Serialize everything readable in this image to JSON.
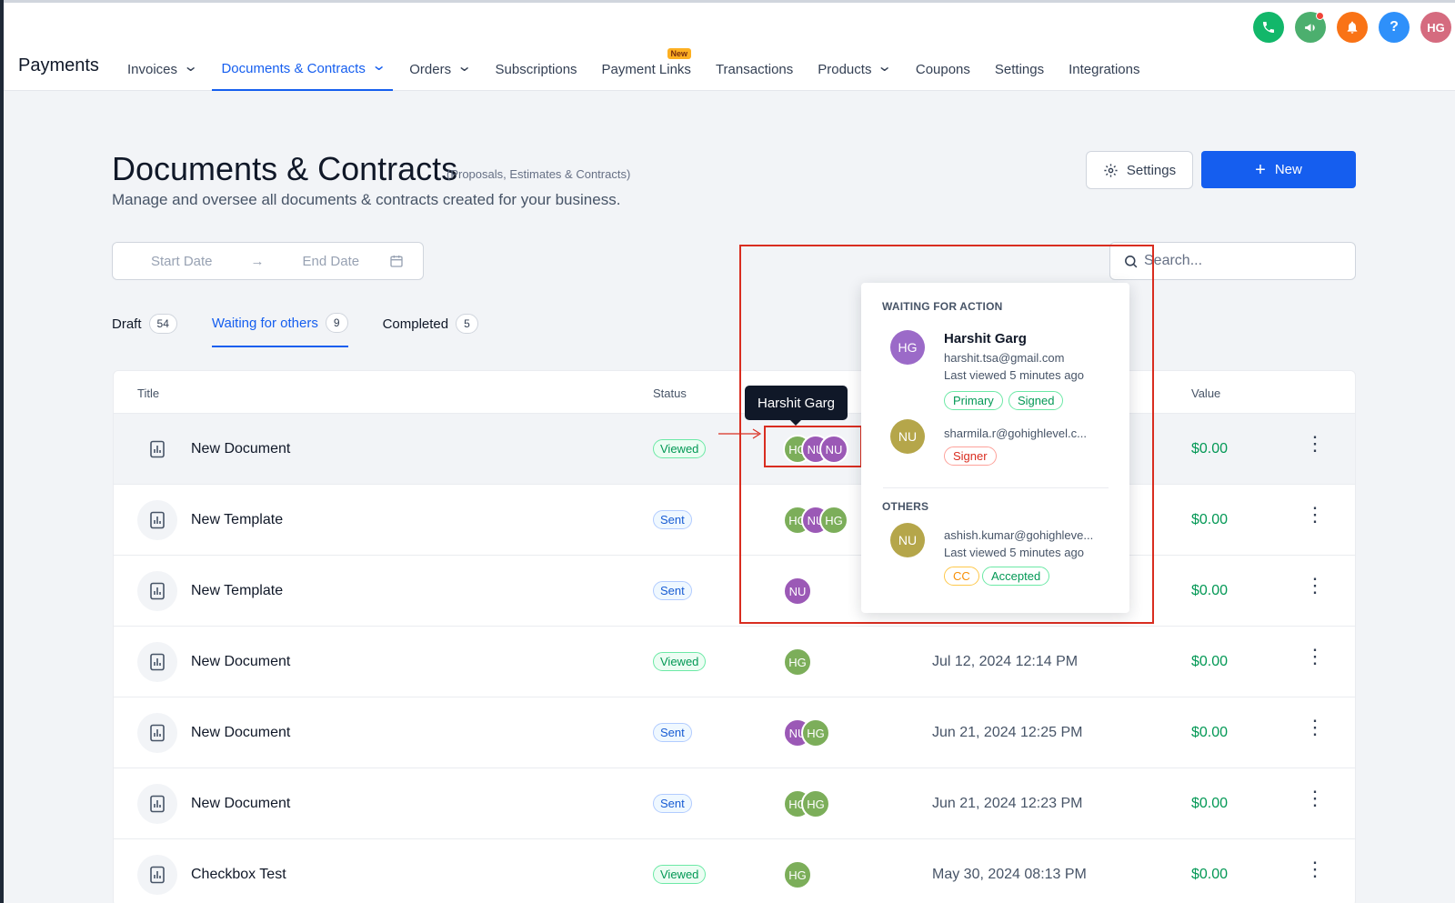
{
  "app": {
    "brand": "Payments",
    "nav": [
      {
        "label": "Invoices",
        "dropdown": true,
        "active": false
      },
      {
        "label": "Documents & Contracts",
        "dropdown": true,
        "active": true
      },
      {
        "label": "Orders",
        "dropdown": true,
        "active": false
      },
      {
        "label": "Subscriptions",
        "dropdown": false,
        "active": false
      },
      {
        "label": "Payment Links",
        "dropdown": false,
        "active": false,
        "tag": "New"
      },
      {
        "label": "Transactions",
        "dropdown": false,
        "active": false
      },
      {
        "label": "Products",
        "dropdown": true,
        "active": false
      },
      {
        "label": "Coupons",
        "dropdown": false,
        "active": false
      },
      {
        "label": "Settings",
        "dropdown": false,
        "active": false
      },
      {
        "label": "Integrations",
        "dropdown": false,
        "active": false
      }
    ],
    "top_icons": [
      {
        "name": "phone-icon",
        "color": "#12b76a"
      },
      {
        "name": "megaphone-icon",
        "color": "#4caf6e"
      },
      {
        "name": "bell-icon",
        "color": "#f97316"
      },
      {
        "name": "help-icon",
        "color": "#2e90fa",
        "glyph": "?"
      },
      {
        "name": "user-avatar",
        "color": "#d56b7f",
        "glyph": "HG"
      }
    ]
  },
  "header": {
    "title": "Documents & Contracts",
    "subtitle": "(Proposals, Estimates & Contracts)",
    "description": "Manage and oversee all documents & contracts created for your business.",
    "settings_label": "Settings",
    "new_label": "New"
  },
  "filters": {
    "start_date_placeholder": "Start Date",
    "end_date_placeholder": "End Date",
    "search_placeholder": "Search..."
  },
  "tabs": [
    {
      "label": "Draft",
      "count": "54",
      "active": false
    },
    {
      "label": "Waiting for others",
      "count": "9",
      "active": true
    },
    {
      "label": "Completed",
      "count": "5",
      "active": false
    }
  ],
  "table": {
    "columns": {
      "title": "Title",
      "status": "Status",
      "value": "Value"
    },
    "rows": [
      {
        "title": "New Document",
        "status": "Viewed",
        "avatars": [
          "HG",
          "NU",
          "NU"
        ],
        "updated": "",
        "value": "$0.00"
      },
      {
        "title": "New Template",
        "status": "Sent",
        "avatars": [
          "HG",
          "NU",
          "HG"
        ],
        "updated": "",
        "value": "$0.00"
      },
      {
        "title": "New Template",
        "status": "Sent",
        "avatars": [
          "NU"
        ],
        "updated": "",
        "value": "$0.00"
      },
      {
        "title": "New Document",
        "status": "Viewed",
        "avatars": [
          "HG"
        ],
        "updated": "Jul 12, 2024 12:14 PM",
        "value": "$0.00"
      },
      {
        "title": "New Document",
        "status": "Sent",
        "avatars": [
          "NU",
          "HG"
        ],
        "updated": "Jun 21, 2024 12:25 PM",
        "value": "$0.00"
      },
      {
        "title": "New Document",
        "status": "Sent",
        "avatars": [
          "HG",
          "HG"
        ],
        "updated": "Jun 21, 2024 12:23 PM",
        "value": "$0.00"
      },
      {
        "title": "Checkbox Test",
        "status": "Viewed",
        "avatars": [
          "HG"
        ],
        "updated": "May 30, 2024 08:13 PM",
        "value": "$0.00"
      }
    ]
  },
  "tooltip": {
    "text": "Harshit Garg"
  },
  "popover": {
    "waiting_heading": "WAITING FOR ACTION",
    "others_heading": "OTHERS",
    "p1": {
      "initials": "HG",
      "name": "Harshit Garg",
      "email": "harshit.tsa@gmail.com",
      "viewed": "Last viewed 5 minutes ago",
      "tag1": "Primary",
      "tag2": "Signed"
    },
    "p2": {
      "initials": "NU",
      "email": "sharmila.r@gohighlevel.c...",
      "tag1": "Signer"
    },
    "p3": {
      "initials": "NU",
      "email": "ashish.kumar@gohighleve...",
      "viewed": "Last viewed 5 minutes ago",
      "tag1": "CC",
      "tag2": "Accepted"
    }
  }
}
